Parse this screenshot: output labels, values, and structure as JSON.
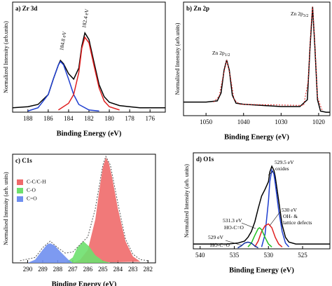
{
  "chart_data": [
    {
      "type": "line",
      "title": "a) Zr 3d",
      "xlabel": "Binding Energy (eV)",
      "ylabel": "Normalized Intensity (arb.units)",
      "xlim": [
        189.5,
        174.5
      ],
      "ylim": [
        0,
        100
      ],
      "xticks": [
        188,
        186,
        184,
        182,
        180,
        178,
        176
      ],
      "series": [
        {
          "color": "#000000",
          "x": [
            189.5,
            188,
            187,
            186,
            185.5,
            185,
            184.8,
            184.5,
            184,
            183.5,
            183,
            182.7,
            182.4,
            182,
            181.5,
            181,
            180.5,
            180,
            179,
            178,
            177,
            176,
            175,
            174.5
          ],
          "values": [
            4,
            5,
            7,
            16,
            30,
            43,
            47,
            44,
            35,
            30,
            40,
            60,
            72,
            66,
            45,
            25,
            14,
            9,
            6,
            5,
            4,
            4,
            4,
            4
          ]
        },
        {
          "color": "#1f3fd0",
          "x": [
            188,
            187,
            186,
            185.5,
            185,
            184.8,
            184.5,
            184,
            183.5,
            183,
            182,
            181
          ],
          "values": [
            1,
            4,
            16,
            30,
            43,
            46,
            43,
            30,
            16,
            7,
            2,
            1
          ]
        },
        {
          "color": "#e02020",
          "x": [
            185,
            184,
            183.5,
            183,
            182.7,
            182.4,
            182,
            181.5,
            181,
            180.5,
            180,
            179
          ],
          "values": [
            2,
            8,
            16,
            36,
            58,
            68,
            63,
            42,
            22,
            10,
            5,
            2
          ]
        }
      ],
      "annotations": [
        {
          "text": "184.8 eV"
        },
        {
          "text": "182.4 eV"
        }
      ]
    },
    {
      "type": "line",
      "title": "b) Zn 2p",
      "xlabel": "Binding Energy (eV)",
      "ylabel": "Normalized Intensity (arb.units)",
      "xlim": [
        1056,
        1017
      ],
      "ylim": [
        0,
        100
      ],
      "xticks": [
        1050,
        1040,
        1030,
        1020
      ],
      "series": [
        {
          "color": "#000000",
          "x": [
            1056,
            1050,
            1047,
            1046,
            1045.2,
            1044.5,
            1043.8,
            1043,
            1042,
            1040,
            1035,
            1030,
            1025,
            1023,
            1022.3,
            1021.6,
            1021,
            1020.3,
            1019.5,
            1018,
            1017
          ],
          "values": [
            12,
            12,
            13,
            20,
            40,
            49,
            40,
            18,
            11,
            10,
            9,
            8,
            8,
            14,
            60,
            96,
            60,
            14,
            4,
            3,
            3
          ]
        },
        {
          "color": "#e02020",
          "dash": true,
          "x": [
            1048,
            1046.5,
            1045.5,
            1044.5,
            1043.5,
            1042.5,
            1041,
            1024,
            1022.8,
            1022,
            1021.6,
            1021.1,
            1020.3,
            1019
          ],
          "values": [
            12,
            17,
            34,
            49,
            34,
            14,
            10,
            9,
            30,
            80,
            96,
            70,
            16,
            4
          ]
        }
      ],
      "annotations": [
        {
          "text": "Zn 2p",
          "sub": "1/2"
        },
        {
          "text": "Zn 2p",
          "sub": "3/2"
        }
      ]
    },
    {
      "type": "area",
      "title": "c) C1s",
      "xlabel": "Binding Energy (eV)",
      "ylabel": "Normalised Intensity (arb. units)",
      "xlim": [
        291,
        281.5
      ],
      "ylim": [
        0,
        100
      ],
      "xticks": [
        290,
        289,
        288,
        287,
        286,
        285,
        284,
        283,
        282
      ],
      "series": [
        {
          "name": "C-C/C-H",
          "color": "#f06a6a",
          "x": [
            287,
            286.5,
            286,
            285.5,
            285.2,
            285,
            284.8,
            284.6,
            284.4,
            284,
            283.5,
            283,
            282.5
          ],
          "values": [
            0,
            3,
            12,
            40,
            70,
            88,
            97,
            92,
            80,
            50,
            20,
            6,
            1
          ]
        },
        {
          "name": "C-O",
          "color": "#6ee06e",
          "x": [
            287.5,
            287,
            286.7,
            286.3,
            285.9,
            285.5,
            285,
            284.5
          ],
          "values": [
            0,
            5,
            14,
            20,
            15,
            7,
            2,
            0
          ]
        },
        {
          "name": "C=O",
          "color": "#6f8ff0",
          "x": [
            290,
            289.5,
            289,
            288.7,
            288.5,
            288.2,
            287.8,
            287.3,
            287
          ],
          "values": [
            0,
            3,
            12,
            17,
            18,
            16,
            10,
            3,
            0
          ]
        },
        {
          "color": "#555555",
          "dash": true,
          "x": [
            290.5,
            289.5,
            289,
            288.5,
            288,
            287.5,
            287,
            286.5,
            286,
            285.5,
            285,
            284.8,
            284.5,
            284,
            283.5,
            283,
            282.5,
            282
          ],
          "values": [
            2,
            5,
            14,
            20,
            14,
            9,
            10,
            17,
            24,
            50,
            90,
            98,
            90,
            55,
            22,
            8,
            3,
            2
          ]
        }
      ],
      "annotations": []
    },
    {
      "type": "line",
      "title": "d) O1s",
      "xlabel": "Binding Energy (eV)",
      "ylabel": "Normalized Intensity (arb. units)",
      "xlim": [
        541,
        521
      ],
      "ylim": [
        0,
        100
      ],
      "xticks": [
        540,
        535,
        530,
        525
      ],
      "series": [
        {
          "color": "#000000",
          "x": [
            541,
            538,
            536,
            534.5,
            533.5,
            533,
            532.5,
            532,
            531.5,
            531,
            530.5,
            530,
            529.8,
            529.5,
            529.2,
            529,
            528.5,
            528,
            527.5,
            527,
            526,
            524,
            521
          ],
          "values": [
            5,
            5,
            5,
            6,
            8,
            12,
            18,
            28,
            42,
            55,
            62,
            70,
            80,
            86,
            82,
            75,
            50,
            25,
            12,
            7,
            5,
            5,
            5
          ]
        },
        {
          "color": "#1f3fd0",
          "x": [
            531,
            530.5,
            530,
            529.8,
            529.5,
            529.2,
            529,
            528.5,
            528,
            527.5,
            527
          ],
          "values": [
            2,
            15,
            50,
            70,
            82,
            78,
            68,
            40,
            18,
            6,
            2
          ]
        },
        {
          "color": "#e02020",
          "x": [
            532,
            531.5,
            531,
            530.5,
            530,
            529.5,
            529,
            528.5,
            528
          ],
          "values": [
            2,
            8,
            18,
            24,
            26,
            22,
            12,
            5,
            2
          ]
        },
        {
          "color": "#20c020",
          "x": [
            533,
            532.5,
            532,
            531.5,
            531.3,
            531,
            530.5,
            530,
            529.5
          ],
          "values": [
            2,
            6,
            14,
            21,
            22,
            20,
            12,
            5,
            2
          ]
        },
        {
          "color": "#1030a0",
          "x": [
            534.5,
            534,
            533.5,
            533,
            532.5,
            532,
            531.5
          ],
          "values": [
            1,
            3,
            6,
            7,
            6,
            3,
            1
          ]
        }
      ],
      "annotations": [
        {
          "text": "529.5 eV"
        },
        {
          "text": "oxides"
        },
        {
          "text": "530 eV"
        },
        {
          "text": "OH- &"
        },
        {
          "text": "lattice defects"
        },
        {
          "text": "531.3 eV"
        },
        {
          "text": "HO-C=O"
        },
        {
          "text": "529 eV"
        },
        {
          "text": "HO-C=O"
        }
      ]
    }
  ]
}
